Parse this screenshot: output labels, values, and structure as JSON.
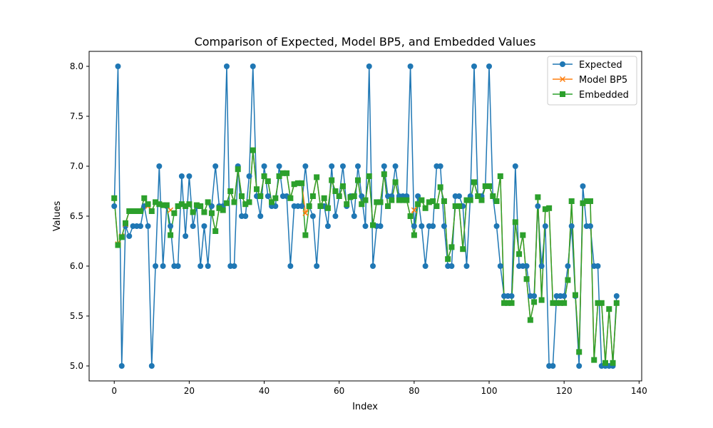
{
  "chart_data": {
    "type": "line",
    "title": "Comparison of Expected, Model BP5, and Embedded Values",
    "xlabel": "Index",
    "ylabel": "Values",
    "xlim": [
      -6.7,
      140.7
    ],
    "ylim": [
      4.85,
      8.15
    ],
    "xticks": [
      0,
      20,
      40,
      60,
      80,
      100,
      120,
      140
    ],
    "yticks": [
      5.0,
      5.5,
      6.0,
      6.5,
      7.0,
      7.5,
      8.0
    ],
    "grid": false,
    "legend_position": "top-right",
    "series": [
      {
        "name": "Expected",
        "color": "#1f77b4",
        "marker": "circle",
        "values": [
          6.6,
          8.0,
          5.0,
          6.4,
          6.3,
          6.4,
          6.4,
          6.4,
          6.6,
          6.4,
          5.0,
          6.0,
          7.0,
          6.0,
          6.6,
          6.4,
          6.0,
          6.0,
          6.9,
          6.3,
          6.9,
          6.4,
          6.6,
          6.0,
          6.4,
          6.0,
          6.6,
          7.0,
          6.6,
          6.6,
          8.0,
          6.0,
          6.0,
          7.0,
          6.5,
          6.5,
          6.9,
          8.0,
          6.7,
          6.5,
          7.0,
          6.7,
          6.6,
          6.6,
          7.0,
          6.7,
          6.7,
          6.0,
          6.6,
          6.6,
          6.6,
          7.0,
          6.6,
          6.5,
          6.0,
          6.6,
          6.6,
          6.4,
          7.0,
          6.5,
          6.7,
          7.0,
          6.6,
          6.7,
          6.5,
          7.0,
          6.7,
          6.4,
          8.0,
          6.0,
          6.4,
          6.4,
          7.0,
          6.7,
          6.7,
          7.0,
          6.7,
          6.7,
          6.7,
          8.0,
          6.4,
          6.7,
          6.4,
          6.0,
          6.4,
          6.4,
          7.0,
          7.0,
          6.4,
          6.0,
          6.0,
          6.7,
          6.7,
          6.6,
          6.0,
          6.7,
          8.0,
          6.7,
          6.7,
          6.8,
          8.0,
          6.7,
          6.4,
          6.0,
          5.7,
          5.7,
          5.7,
          7.0,
          6.0,
          6.0,
          6.0,
          5.7,
          5.7,
          6.6,
          6.0,
          6.4,
          5.0,
          5.0,
          5.7,
          5.7,
          5.7,
          6.0,
          6.4,
          5.7,
          5.0,
          6.8,
          6.4,
          6.4,
          6.0,
          6.0,
          5.0,
          5.0,
          5.0,
          5.0,
          5.7
        ]
      },
      {
        "name": "Model BP5",
        "color": "#ff7f0e",
        "marker": "x",
        "values": [
          6.68,
          6.22,
          6.3,
          6.42,
          6.55,
          6.55,
          6.55,
          6.55,
          6.68,
          6.6,
          6.55,
          6.64,
          6.62,
          6.61,
          6.61,
          6.56,
          6.53,
          6.6,
          6.62,
          6.6,
          6.62,
          6.54,
          6.61,
          6.6,
          6.54,
          6.64,
          6.53,
          6.35,
          6.58,
          6.56,
          6.63,
          6.75,
          6.64,
          6.97,
          6.7,
          6.62,
          6.64,
          7.16,
          6.77,
          6.7,
          6.9,
          6.85,
          6.64,
          6.68,
          6.9,
          6.93,
          6.93,
          6.68,
          6.82,
          6.83,
          6.83,
          6.53,
          6.6,
          6.7,
          6.89,
          6.6,
          6.68,
          6.58,
          6.86,
          6.75,
          6.7,
          6.8,
          6.62,
          6.69,
          6.7,
          6.86,
          6.62,
          6.66,
          6.9,
          6.41,
          6.64,
          6.64,
          6.92,
          6.6,
          6.66,
          6.84,
          6.66,
          6.66,
          6.66,
          6.5,
          6.56,
          6.62,
          6.66,
          6.58,
          6.64,
          6.65,
          6.6,
          6.79,
          6.65,
          6.07,
          6.19,
          6.6,
          6.6,
          6.17,
          6.66,
          6.66,
          6.84,
          6.7,
          6.66,
          6.8,
          6.8,
          6.7,
          6.65,
          6.9,
          5.63,
          5.63,
          5.63,
          6.44,
          6.12,
          6.31,
          5.87,
          5.46,
          5.64,
          6.69,
          5.66,
          6.57,
          6.58,
          5.63,
          5.63,
          5.63,
          5.63,
          5.86,
          6.65,
          5.71,
          5.14,
          6.63,
          6.65,
          6.65,
          5.06,
          5.63,
          5.63,
          5.03,
          5.57,
          5.03,
          5.63
        ]
      },
      {
        "name": "Embedded",
        "color": "#2ca02c",
        "marker": "square",
        "values": [
          6.68,
          6.21,
          6.29,
          6.43,
          6.55,
          6.55,
          6.55,
          6.55,
          6.68,
          6.62,
          6.55,
          6.64,
          6.62,
          6.61,
          6.61,
          6.31,
          6.53,
          6.6,
          6.62,
          6.6,
          6.62,
          6.54,
          6.61,
          6.6,
          6.54,
          6.64,
          6.53,
          6.35,
          6.58,
          6.56,
          6.63,
          6.75,
          6.64,
          6.97,
          6.7,
          6.62,
          6.64,
          7.16,
          6.77,
          6.7,
          6.9,
          6.85,
          6.64,
          6.68,
          6.9,
          6.93,
          6.93,
          6.68,
          6.82,
          6.83,
          6.83,
          6.31,
          6.6,
          6.7,
          6.89,
          6.6,
          6.68,
          6.58,
          6.86,
          6.75,
          6.7,
          6.8,
          6.62,
          6.69,
          6.7,
          6.86,
          6.62,
          6.66,
          6.9,
          6.41,
          6.64,
          6.64,
          6.92,
          6.6,
          6.66,
          6.84,
          6.66,
          6.66,
          6.66,
          6.5,
          6.31,
          6.62,
          6.66,
          6.58,
          6.64,
          6.65,
          6.6,
          6.79,
          6.65,
          6.07,
          6.19,
          6.6,
          6.6,
          6.17,
          6.66,
          6.66,
          6.84,
          6.7,
          6.66,
          6.8,
          6.8,
          6.7,
          6.65,
          6.9,
          5.63,
          5.63,
          5.63,
          6.44,
          6.12,
          6.31,
          5.87,
          5.46,
          5.64,
          6.69,
          5.66,
          6.57,
          6.58,
          5.63,
          5.63,
          5.63,
          5.63,
          5.86,
          6.65,
          5.71,
          5.14,
          6.63,
          6.65,
          6.65,
          5.06,
          5.63,
          5.63,
          5.03,
          5.57,
          5.03,
          5.63
        ]
      }
    ]
  }
}
